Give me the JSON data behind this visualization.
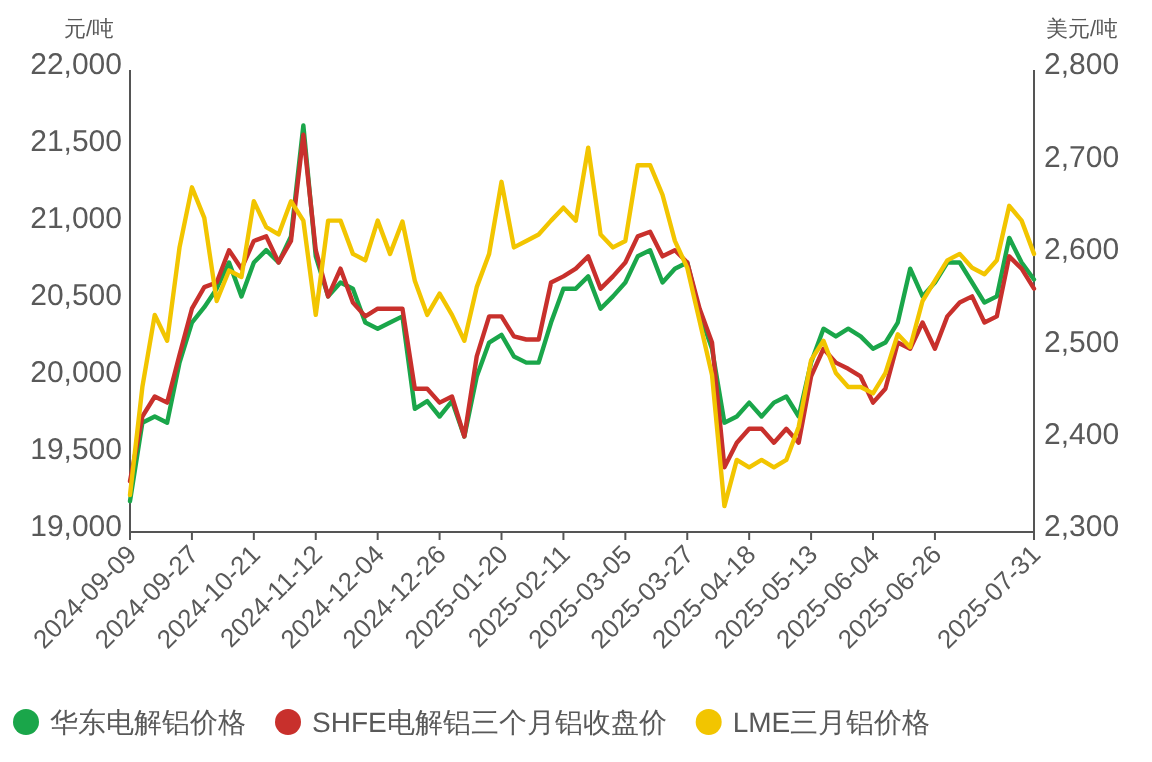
{
  "chart_data": {
    "type": "line",
    "ylabel": "元/吨",
    "y2label": "美元/吨",
    "categories": [
      "2024-09-09",
      null,
      null,
      null,
      null,
      "2024-09-27",
      null,
      null,
      null,
      null,
      "2024-10-21",
      null,
      null,
      null,
      null,
      "2024-11-12",
      null,
      null,
      null,
      null,
      "2024-12-04",
      null,
      null,
      null,
      null,
      "2024-12-26",
      null,
      null,
      null,
      null,
      "2025-01-20",
      null,
      null,
      null,
      null,
      "2025-02-11",
      null,
      null,
      null,
      null,
      "2025-03-05",
      null,
      null,
      null,
      null,
      "2025-03-27",
      null,
      null,
      null,
      null,
      "2025-04-18",
      null,
      null,
      null,
      null,
      "2025-05-13",
      null,
      null,
      null,
      null,
      "2025-06-04",
      null,
      null,
      null,
      null,
      "2025-06-26",
      null,
      null,
      null,
      null,
      null,
      null,
      null,
      "2025-07-31"
    ],
    "series": [
      {
        "name": "华东电解铝价格",
        "color": "#1aa64a",
        "values": [
          19200,
          19710,
          19750,
          19710,
          20100,
          20360,
          20460,
          20580,
          20750,
          20530,
          20750,
          20830,
          20750,
          20920,
          21640,
          20790,
          20530,
          20620,
          20580,
          20360,
          20320,
          20360,
          20400,
          19800,
          19850,
          19750,
          19850,
          19620,
          20010,
          20230,
          20280,
          20140,
          20100,
          20100,
          20360,
          20580,
          20580,
          20660,
          20450,
          20530,
          20620,
          20790,
          20830,
          20620,
          20710,
          20750,
          20420,
          20190,
          19710,
          19750,
          19840,
          19750,
          19840,
          19880,
          19750,
          20100,
          20320,
          20270,
          20320,
          20270,
          20190,
          20230,
          20360,
          20710,
          20530,
          20620,
          20750,
          20750,
          20620,
          20490,
          20530,
          20910,
          20750,
          20640
        ]
      },
      {
        "name": "SHFE电解铝三个月铝收盘价",
        "color": "#c8302c",
        "values": [
          19330,
          19750,
          19880,
          19840,
          20150,
          20450,
          20590,
          20620,
          20830,
          20710,
          20890,
          20920,
          20750,
          20890,
          21580,
          20830,
          20530,
          20710,
          20490,
          20400,
          20450,
          20450,
          20450,
          19930,
          19930,
          19840,
          19880,
          19620,
          20140,
          20400,
          20400,
          20270,
          20250,
          20250,
          20620,
          20660,
          20710,
          20790,
          20580,
          20660,
          20750,
          20920,
          20950,
          20790,
          20830,
          20750,
          20450,
          20230,
          19420,
          19580,
          19670,
          19670,
          19580,
          19670,
          19580,
          20010,
          20190,
          20100,
          20060,
          20010,
          19840,
          19930,
          20230,
          20190,
          20360,
          20190,
          20400,
          20490,
          20530,
          20360,
          20400,
          20790,
          20710,
          20580
        ]
      },
      {
        "name": "LME三月铝价格",
        "color": "#f2c500",
        "axis": "y2",
        "values": [
          2340,
          2457,
          2535,
          2507,
          2608,
          2673,
          2640,
          2550,
          2583,
          2576,
          2658,
          2630,
          2622,
          2658,
          2637,
          2535,
          2637,
          2637,
          2601,
          2594,
          2637,
          2601,
          2636,
          2572,
          2535,
          2558,
          2535,
          2507,
          2565,
          2601,
          2679,
          2608,
          2615,
          2622,
          2637,
          2651,
          2637,
          2716,
          2622,
          2608,
          2615,
          2697,
          2697,
          2665,
          2615,
          2586,
          2528,
          2470,
          2328,
          2378,
          2370,
          2378,
          2370,
          2378,
          2414,
          2486,
          2507,
          2472,
          2457,
          2457,
          2450,
          2472,
          2514,
          2500,
          2550,
          2572,
          2594,
          2601,
          2586,
          2579,
          2594,
          2653,
          2637,
          2601
        ]
      }
    ],
    "ylim": [
      19000,
      22000
    ],
    "yticks": [
      {
        "value": 19000,
        "label": "19,000"
      },
      {
        "value": 19500,
        "label": "19,500"
      },
      {
        "value": 20000,
        "label": "20,000"
      },
      {
        "value": 20500,
        "label": "20,500"
      },
      {
        "value": 21000,
        "label": "21,000"
      },
      {
        "value": 21500,
        "label": "21,500"
      },
      {
        "value": 22000,
        "label": "22,000"
      }
    ],
    "y2lim": [
      2300,
      2800
    ],
    "y2ticks": [
      {
        "value": 2300,
        "label": "2,300"
      },
      {
        "value": 2400,
        "label": "2,400"
      },
      {
        "value": 2500,
        "label": "2,500"
      },
      {
        "value": 2600,
        "label": "2,600"
      },
      {
        "value": 2700,
        "label": "2,700"
      },
      {
        "value": 2800,
        "label": "2,800"
      }
    ],
    "grid": false,
    "legend": "bottom",
    "marker": "none",
    "line_style": "solid"
  }
}
